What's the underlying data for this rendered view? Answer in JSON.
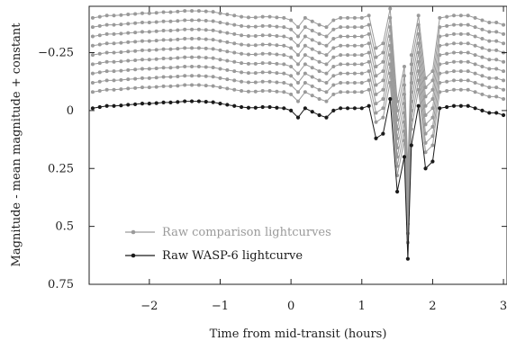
{
  "chart_data": {
    "type": "line",
    "title": "",
    "xlabel": "Time from mid-transit (hours)",
    "ylabel": "Magnitude - mean magnitude + constant",
    "xlim": [
      -2.85,
      3.05
    ],
    "ylim": [
      0.75,
      -0.45
    ],
    "y_inverted": true,
    "x_ticks": [
      -2,
      -1,
      0,
      1,
      2,
      3
    ],
    "x_tick_labels": [
      "−2",
      "−1",
      "0",
      "1",
      "2",
      "3"
    ],
    "y_ticks": [
      -0.25,
      0,
      0.25,
      0.5,
      0.75
    ],
    "y_tick_labels": [
      "−0.25",
      "0",
      "0.25",
      "0.5",
      "0.75"
    ],
    "grid": false,
    "legend": {
      "position": "lower-left",
      "entries": [
        {
          "label": "Raw comparison lightcurves",
          "color": "#9a9a9a"
        },
        {
          "label": "Raw WASP-6 lightcurve",
          "color": "#1a1a1a"
        }
      ]
    },
    "colors": {
      "comparison": "#9a9a9a",
      "target": "#1a1a1a"
    },
    "comparison_offsets": [
      -0.07,
      -0.11,
      -0.15,
      -0.19,
      -0.23,
      -0.27,
      -0.31,
      -0.35,
      -0.39
    ],
    "series": [
      {
        "name": "Raw WASP-6 lightcurve",
        "x": [
          -2.8,
          -2.7,
          -2.6,
          -2.5,
          -2.4,
          -2.3,
          -2.2,
          -2.1,
          -2.0,
          -1.9,
          -1.8,
          -1.7,
          -1.6,
          -1.5,
          -1.4,
          -1.3,
          -1.2,
          -1.1,
          -1.0,
          -0.9,
          -0.8,
          -0.7,
          -0.6,
          -0.5,
          -0.4,
          -0.3,
          -0.2,
          -0.1,
          0.0,
          0.1,
          0.2,
          0.3,
          0.4,
          0.5,
          0.6,
          0.7,
          0.8,
          0.9,
          1.0,
          1.1,
          1.2,
          1.3,
          1.4,
          1.5,
          1.6,
          1.65,
          1.7,
          1.8,
          1.9,
          2.0,
          2.1,
          2.2,
          2.3,
          2.4,
          2.5,
          2.6,
          2.7,
          2.8,
          2.9,
          3.0
        ],
        "values": [
          -0.01,
          -0.015,
          -0.02,
          -0.02,
          -0.022,
          -0.025,
          -0.027,
          -0.03,
          -0.03,
          -0.032,
          -0.035,
          -0.035,
          -0.037,
          -0.04,
          -0.04,
          -0.04,
          -0.038,
          -0.036,
          -0.03,
          -0.025,
          -0.02,
          -0.015,
          -0.012,
          -0.012,
          -0.015,
          -0.015,
          -0.012,
          -0.01,
          0.0,
          0.03,
          -0.01,
          0.005,
          0.02,
          0.03,
          0.0,
          -0.01,
          -0.01,
          -0.01,
          -0.01,
          -0.02,
          0.12,
          0.1,
          -0.05,
          0.35,
          0.2,
          0.64,
          0.15,
          -0.02,
          0.25,
          0.22,
          -0.01,
          -0.015,
          -0.02,
          -0.02,
          -0.02,
          -0.01,
          0.0,
          0.01,
          0.01,
          0.02
        ]
      }
    ]
  }
}
